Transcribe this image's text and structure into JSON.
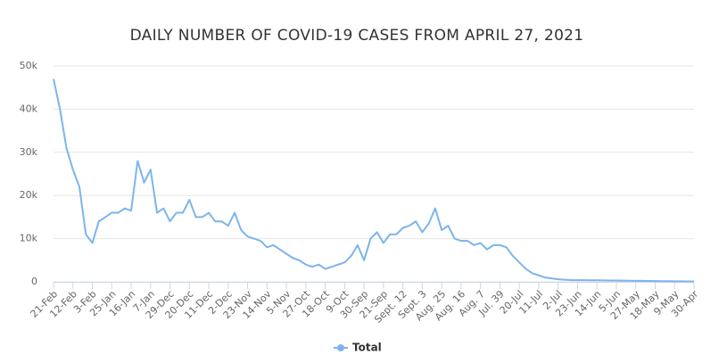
{
  "chart_data": {
    "type": "line",
    "title": "DAILY NUMBER OF COVID-19 CASES FROM APRIL 27, 2021",
    "categories": [
      "21-Feb",
      null,
      null,
      "12-Feb",
      null,
      null,
      "3-Feb",
      null,
      null,
      "25-Jan",
      null,
      null,
      "16-Jan",
      null,
      null,
      "7-Jan",
      null,
      null,
      "29-Dec",
      null,
      null,
      "20-Dec",
      null,
      null,
      "11-Dec",
      null,
      null,
      "2-Dec",
      null,
      null,
      "23-Nov",
      null,
      null,
      "14-Nov",
      null,
      null,
      "5-Nov",
      null,
      null,
      "27-Oct",
      null,
      null,
      "18-Oct",
      null,
      null,
      "9-Oct",
      null,
      null,
      "30-Sep",
      null,
      null,
      "21-Sep",
      null,
      null,
      "Sept. 12",
      null,
      null,
      "Sept. 3",
      null,
      null,
      "Aug. 25",
      null,
      null,
      "Aug. 16",
      null,
      null,
      "Aug. 7",
      null,
      null,
      "Jul. 39",
      null,
      null,
      "20-Jul",
      null,
      null,
      "11-Jul",
      null,
      null,
      "2-Jul",
      null,
      null,
      "23-Jun",
      null,
      null,
      "14-Jun",
      null,
      null,
      "5-Jun",
      null,
      null,
      "27-May",
      null,
      null,
      "18-May",
      null,
      null,
      "9-May",
      null,
      null,
      "30-Apr"
    ],
    "series": [
      {
        "name": "Total",
        "color": "#7cb5ec",
        "values": [
          47000,
          40000,
          31000,
          26000,
          22000,
          11000,
          9000,
          14000,
          15000,
          16000,
          16000,
          17000,
          16500,
          28000,
          23000,
          26000,
          16000,
          17000,
          14000,
          16000,
          16000,
          19000,
          15000,
          15000,
          16000,
          14000,
          14000,
          13000,
          16000,
          12000,
          10500,
          10000,
          9500,
          8000,
          8500,
          7500,
          6500,
          5500,
          5000,
          4000,
          3500,
          4000,
          3000,
          3500,
          4000,
          4500,
          6000,
          8500,
          5000,
          10000,
          11500,
          9000,
          11000,
          11000,
          12500,
          13000,
          14000,
          11500,
          13500,
          17000,
          12000,
          13000,
          10000,
          9500,
          9500,
          8500,
          9000,
          7500,
          8500,
          8500,
          8000,
          6000,
          4500,
          3000,
          2000,
          1500,
          1000,
          800,
          600,
          500,
          400,
          400,
          380,
          360,
          350,
          340,
          320,
          300,
          280,
          260,
          240,
          220,
          200,
          180,
          160,
          150,
          140,
          120,
          110,
          100
        ]
      }
    ],
    "ylim": [
      0,
      50000
    ],
    "yticks": [
      0,
      {
        "value": 10000,
        "label": "10k"
      },
      {
        "value": 20000,
        "label": "20k"
      },
      {
        "value": 30000,
        "label": "30k"
      },
      {
        "value": 40000,
        "label": "40k"
      },
      {
        "value": 50000,
        "label": "50k"
      }
    ],
    "grid": true
  }
}
